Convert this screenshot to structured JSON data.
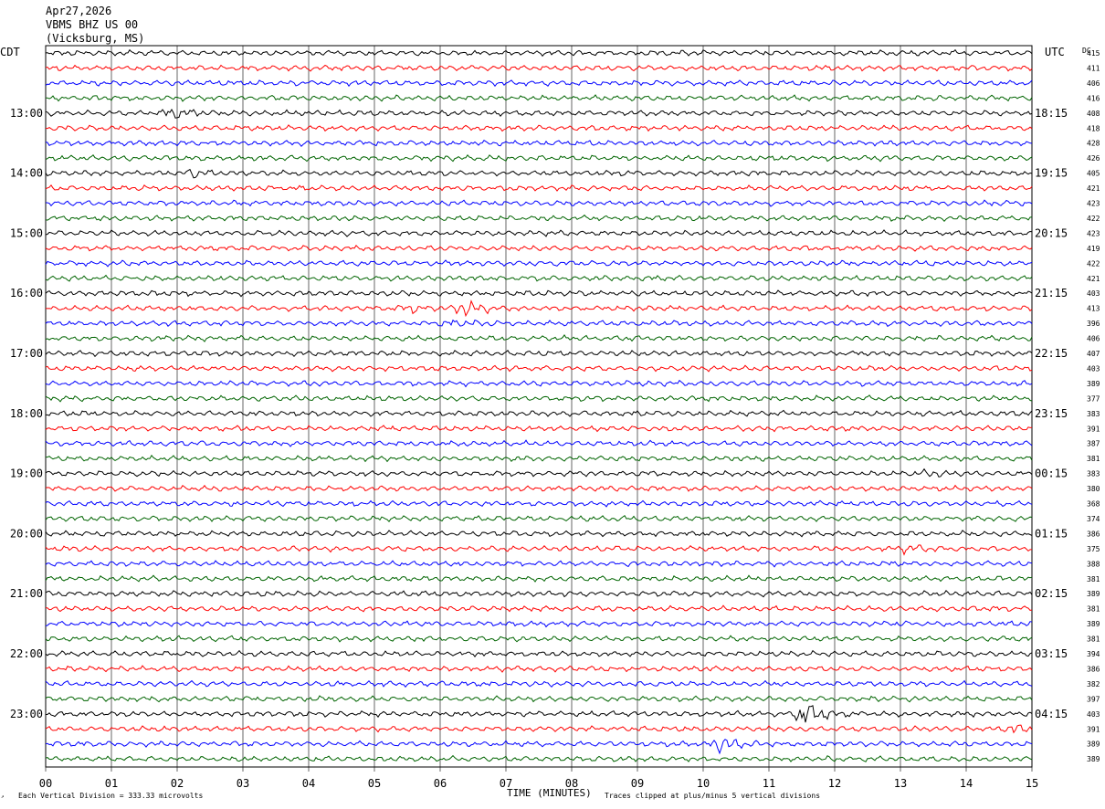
{
  "header": {
    "date": "Apr27,2026",
    "station": "VBMS BHZ US 00",
    "location": "(Vicksburg, MS)"
  },
  "left_axis_title": "CDT",
  "right_axis_title": "UTC",
  "dc_title": "DC",
  "footer": {
    "division_note": "Each Vertical Division =  333.33 microvolts",
    "xlabel": "TIME (MINUTES)",
    "clip_note": "Traces clipped at plus/minus 5 vertical divisions"
  },
  "colors": {
    "cycle": [
      "#000000",
      "#ff0000",
      "#0000ff",
      "#006400"
    ]
  },
  "chart_data": {
    "type": "line",
    "subtype": "helicorder",
    "x_ticks": [
      "00",
      "01",
      "02",
      "03",
      "04",
      "05",
      "06",
      "07",
      "08",
      "09",
      "10",
      "11",
      "12",
      "13",
      "14",
      "15"
    ],
    "xlim": [
      0,
      15
    ],
    "left_hour_labels": [
      "13:00",
      "14:00",
      "15:00",
      "16:00",
      "17:00",
      "18:00",
      "19:00",
      "20:00",
      "21:00",
      "22:00",
      "23:00"
    ],
    "right_hour_labels": [
      "18:15",
      "19:15",
      "20:15",
      "21:15",
      "22:15",
      "23:15",
      "00:15",
      "01:15",
      "02:15",
      "03:15",
      "04:15"
    ],
    "first_labeled_row": 4,
    "rows_per_hour": 4,
    "row_count": 48,
    "dc_offsets": [
      "415",
      "411",
      "406",
      "416",
      "408",
      "418",
      "428",
      "426",
      "405",
      "421",
      "423",
      "422",
      "423",
      "419",
      "422",
      "421",
      "403",
      "413",
      "396",
      "406",
      "407",
      "403",
      "389",
      "377",
      "383",
      "391",
      "387",
      "381",
      "383",
      "380",
      "368",
      "374",
      "386",
      "375",
      "388",
      "381",
      "389",
      "381",
      "389",
      "381",
      "394",
      "386",
      "382",
      "397",
      "403",
      "391",
      "389",
      "389"
    ],
    "events": [
      {
        "row": 4,
        "minute": 1.9,
        "amplitude": 1.8
      },
      {
        "row": 8,
        "minute": 2.2,
        "amplitude": 1.4
      },
      {
        "row": 17,
        "minute": 6.3,
        "amplitude": 3.5
      },
      {
        "row": 17,
        "minute": 5.5,
        "amplitude": 1.3
      },
      {
        "row": 18,
        "minute": 6.1,
        "amplitude": 1.4
      },
      {
        "row": 28,
        "minute": 13.3,
        "amplitude": 1.5
      },
      {
        "row": 33,
        "minute": 13.1,
        "amplitude": 1.3
      },
      {
        "row": 44,
        "minute": 11.5,
        "amplitude": 4.5
      },
      {
        "row": 45,
        "minute": 14.7,
        "amplitude": 2.0
      },
      {
        "row": 46,
        "minute": 10.2,
        "amplitude": 4.0
      }
    ]
  }
}
